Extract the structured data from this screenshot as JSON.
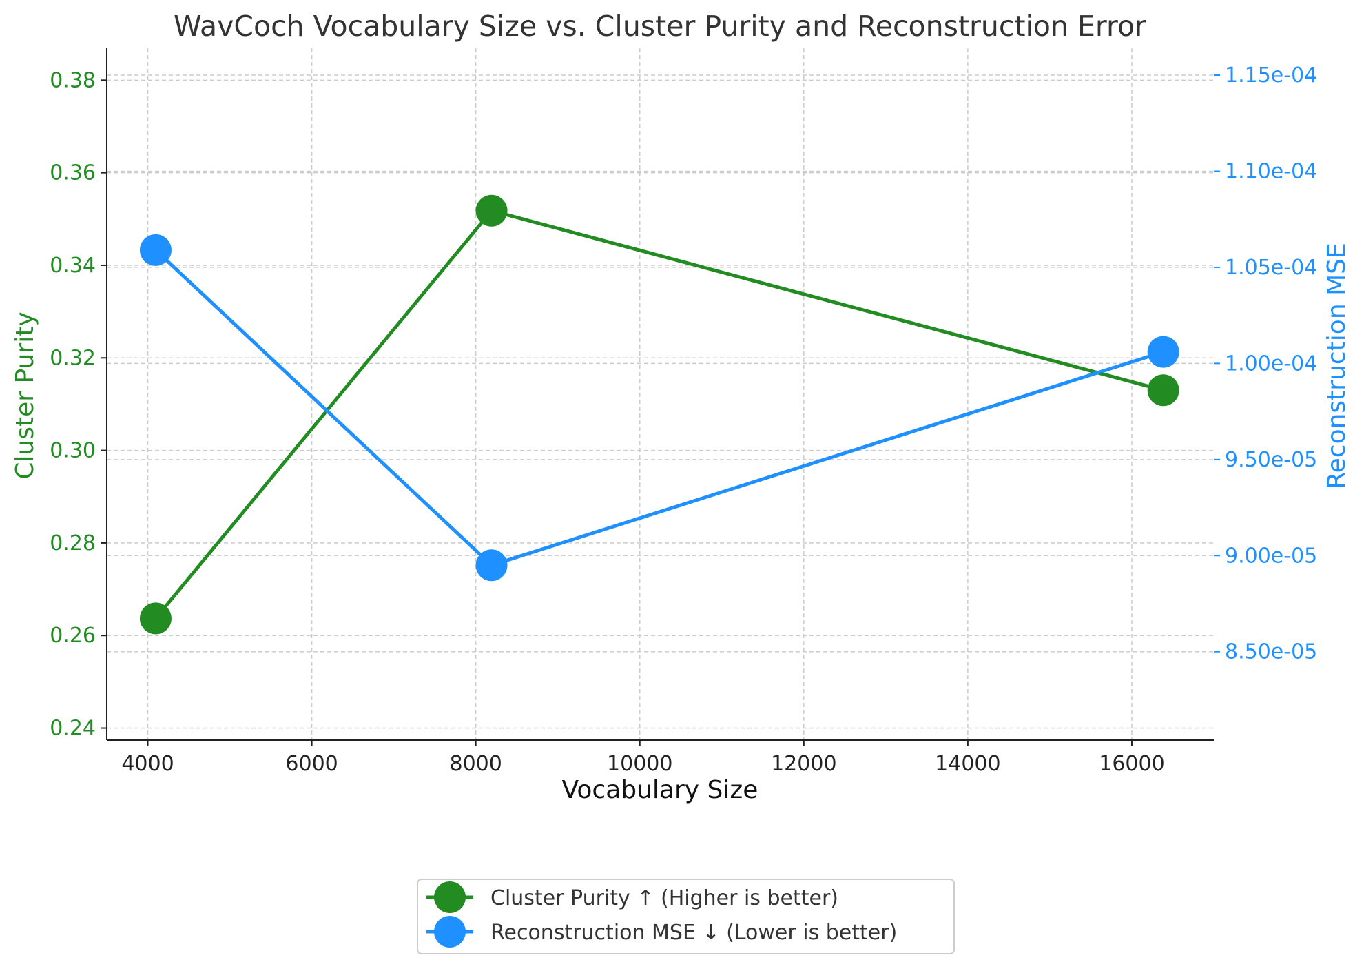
{
  "chart_data": {
    "type": "line",
    "title": "WavCoch Vocabulary Size vs. Cluster Purity and Reconstruction Error",
    "xlabel": "Vocabulary Size",
    "x": [
      4096,
      8192,
      16384
    ],
    "xlim": [
      3500,
      17000
    ],
    "xticks": [
      4000,
      6000,
      8000,
      10000,
      12000,
      14000,
      16000
    ],
    "xtick_labels": [
      "4000",
      "6000",
      "8000",
      "10000",
      "12000",
      "14000",
      "16000"
    ],
    "grid": true,
    "legend_position": "bottom-center",
    "left_axis": {
      "label": "Cluster Purity",
      "color": "#228B22",
      "ylim": [
        0.2374,
        0.3869
      ],
      "ticks": [
        0.24,
        0.26,
        0.28,
        0.3,
        0.32,
        0.34,
        0.36,
        0.38
      ],
      "tick_labels": [
        "0.24",
        "0.26",
        "0.28",
        "0.30",
        "0.32",
        "0.34",
        "0.36",
        "0.38"
      ]
    },
    "right_axis": {
      "label": "Reconstruction MSE",
      "color": "#1E90FF",
      "ylim": [
        8.04e-05,
        0.0001164
      ],
      "ticks": [
        8.5e-05,
        9e-05,
        9.5e-05,
        0.0001,
        0.000105,
        0.00011,
        0.000115
      ],
      "tick_labels": [
        "8.50e-05",
        "9.00e-05",
        "9.50e-05",
        "1.00e-04",
        "1.05e-04",
        "1.10e-04",
        "1.15e-04"
      ]
    },
    "series": [
      {
        "name": "Cluster Purity ↑ (Higher is better)",
        "axis": "left",
        "color": "#228B22",
        "values": [
          0.2637,
          0.3518,
          0.313
        ]
      },
      {
        "name": "Reconstruction MSE ↓ (Lower is better)",
        "axis": "right",
        "color": "#1E90FF",
        "values": [
          0.0001059,
          8.95e-05,
          0.0001006
        ]
      }
    ]
  }
}
